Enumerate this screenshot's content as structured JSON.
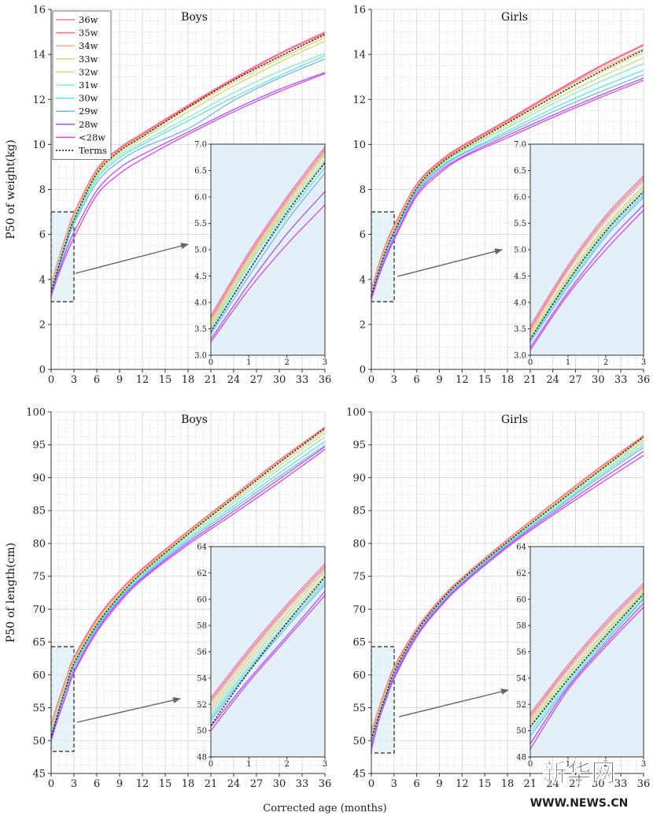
{
  "legend": {
    "entries": [
      {
        "label": "36w",
        "color": "#f472b6",
        "dash": false
      },
      {
        "label": "35w",
        "color": "#f87171",
        "dash": false
      },
      {
        "label": "34w",
        "color": "#f5b083",
        "dash": false
      },
      {
        "label": "33w",
        "color": "#e2d27e",
        "dash": false
      },
      {
        "label": "32w",
        "color": "#c5de85",
        "dash": false
      },
      {
        "label": "31w",
        "color": "#8fe6c8",
        "dash": false
      },
      {
        "label": "30w",
        "color": "#5fe3ec",
        "dash": false
      },
      {
        "label": "29w",
        "color": "#7eb3ea",
        "dash": false
      },
      {
        "label": "28w",
        "color": "#a855f7",
        "dash": false
      },
      {
        "label": "<28w",
        "color": "#d946ef",
        "dash": false
      },
      {
        "label": "Terms",
        "color": "#111111",
        "dash": true
      }
    ]
  },
  "xlabel_common": "Corrected age (months)",
  "watermark": {
    "cn": "新华网",
    "en": "WWW.NEWS.CN"
  },
  "chart_data": [
    {
      "type": "line",
      "id": "weight-boys",
      "title": "Boys",
      "ylabel": "P50 of weight(kg)",
      "xlim": [
        0,
        36
      ],
      "ylim": [
        0,
        16
      ],
      "xticks": [
        0,
        3,
        6,
        9,
        12,
        15,
        18,
        21,
        24,
        27,
        30,
        33,
        36
      ],
      "yticks": [
        0,
        2,
        4,
        6,
        8,
        10,
        12,
        14,
        16
      ],
      "x": [
        0,
        1,
        2,
        3,
        6,
        9,
        12,
        18,
        24,
        30,
        36
      ],
      "series": [
        {
          "name": "36w",
          "values": [
            3.75,
            4.95,
            6.0,
            6.95,
            8.9,
            9.85,
            10.5,
            11.75,
            12.95,
            14.05,
            15.0
          ]
        },
        {
          "name": "35w",
          "values": [
            3.7,
            4.9,
            5.95,
            6.9,
            8.85,
            9.8,
            10.45,
            11.7,
            12.9,
            14.0,
            14.95
          ]
        },
        {
          "name": "34w",
          "values": [
            3.65,
            4.85,
            5.9,
            6.85,
            8.8,
            9.75,
            10.4,
            11.65,
            12.85,
            13.9,
            14.85
          ]
        },
        {
          "name": "33w",
          "values": [
            3.6,
            4.8,
            5.85,
            6.8,
            8.75,
            9.7,
            10.35,
            11.6,
            12.75,
            13.8,
            14.75
          ]
        },
        {
          "name": "32w",
          "values": [
            3.55,
            4.75,
            5.8,
            6.7,
            8.65,
            9.6,
            10.25,
            11.45,
            12.6,
            13.65,
            14.6
          ]
        },
        {
          "name": "31w",
          "values": [
            3.5,
            4.7,
            5.75,
            6.65,
            8.55,
            9.5,
            10.1,
            11.2,
            12.3,
            13.25,
            14.05
          ]
        },
        {
          "name": "30w",
          "values": [
            3.45,
            4.6,
            5.65,
            6.55,
            8.45,
            9.4,
            10.0,
            11.05,
            12.1,
            13.05,
            13.95
          ]
        },
        {
          "name": "29w",
          "values": [
            3.4,
            4.5,
            5.55,
            6.45,
            8.3,
            9.25,
            9.85,
            10.7,
            11.95,
            12.95,
            13.8
          ]
        },
        {
          "name": "28w",
          "values": [
            3.3,
            4.35,
            5.3,
            6.1,
            7.95,
            8.95,
            9.55,
            10.55,
            11.55,
            12.45,
            13.2
          ]
        },
        {
          "name": "<28w",
          "values": [
            3.25,
            4.25,
            5.1,
            5.85,
            7.75,
            8.7,
            9.35,
            10.45,
            11.45,
            12.35,
            13.15
          ]
        },
        {
          "name": "Terms",
          "values": [
            3.45,
            4.6,
            5.7,
            6.65,
            8.7,
            9.7,
            10.35,
            11.65,
            12.85,
            13.9,
            14.9
          ]
        }
      ],
      "inset": {
        "xlim": [
          0,
          3
        ],
        "ylim": [
          3.0,
          7.0
        ],
        "xticks": [
          0,
          1,
          2,
          3
        ],
        "yticks": [
          3.0,
          3.5,
          4.0,
          4.5,
          5.0,
          5.5,
          6.0,
          6.5,
          7.0
        ]
      }
    },
    {
      "type": "line",
      "id": "weight-girls",
      "title": "Girls",
      "ylabel": "",
      "xlim": [
        0,
        36
      ],
      "ylim": [
        0,
        16
      ],
      "xticks": [
        0,
        3,
        6,
        9,
        12,
        15,
        18,
        21,
        24,
        27,
        30,
        33,
        36
      ],
      "yticks": [
        0,
        2,
        4,
        6,
        8,
        10,
        12,
        14,
        16
      ],
      "x": [
        0,
        1,
        2,
        3,
        6,
        9,
        12,
        18,
        24,
        30,
        36
      ],
      "series": [
        {
          "name": "36w",
          "values": [
            3.55,
            4.7,
            5.65,
            6.4,
            8.25,
            9.25,
            9.95,
            11.1,
            12.3,
            13.45,
            14.45
          ]
        },
        {
          "name": "35w",
          "values": [
            3.5,
            4.65,
            5.6,
            6.35,
            8.2,
            9.2,
            9.9,
            11.05,
            12.25,
            13.4,
            14.4
          ]
        },
        {
          "name": "34w",
          "values": [
            3.45,
            4.6,
            5.55,
            6.3,
            8.15,
            9.15,
            9.85,
            11.0,
            12.2,
            13.3,
            14.25
          ]
        },
        {
          "name": "33w",
          "values": [
            3.4,
            4.5,
            5.45,
            6.2,
            8.1,
            9.1,
            9.8,
            10.95,
            12.1,
            13.15,
            14.1
          ]
        },
        {
          "name": "32w",
          "values": [
            3.35,
            4.45,
            5.4,
            6.15,
            8.05,
            9.05,
            9.75,
            10.85,
            11.95,
            12.95,
            13.85
          ]
        },
        {
          "name": "31w",
          "values": [
            3.3,
            4.4,
            5.35,
            6.1,
            8.0,
            9.0,
            9.7,
            10.75,
            11.8,
            12.75,
            13.6
          ]
        },
        {
          "name": "30w",
          "values": [
            3.3,
            4.35,
            5.3,
            6.05,
            7.95,
            8.95,
            9.6,
            10.6,
            11.6,
            12.5,
            13.3
          ]
        },
        {
          "name": "29w",
          "values": [
            3.25,
            4.3,
            5.25,
            6.0,
            7.9,
            8.9,
            9.55,
            10.5,
            11.45,
            12.3,
            13.1
          ]
        },
        {
          "name": "28w",
          "values": [
            3.15,
            4.2,
            5.1,
            5.85,
            7.8,
            8.8,
            9.45,
            10.4,
            11.3,
            12.15,
            12.95
          ]
        },
        {
          "name": "<28w",
          "values": [
            3.1,
            4.15,
            5.0,
            5.75,
            7.7,
            8.7,
            9.4,
            10.3,
            11.2,
            12.05,
            12.85
          ]
        },
        {
          "name": "Terms",
          "values": [
            3.3,
            4.4,
            5.35,
            6.1,
            8.05,
            9.1,
            9.8,
            10.95,
            12.1,
            13.2,
            14.2
          ]
        }
      ],
      "inset": {
        "xlim": [
          0,
          3
        ],
        "ylim": [
          3.0,
          7.0
        ],
        "xticks": [
          0,
          1,
          2,
          3
        ],
        "yticks": [
          3.0,
          3.5,
          4.0,
          4.5,
          5.0,
          5.5,
          6.0,
          6.5,
          7.0
        ]
      }
    },
    {
      "type": "line",
      "id": "length-boys",
      "title": "Boys",
      "ylabel": "P50 of length(cm)",
      "xlim": [
        0,
        36
      ],
      "ylim": [
        45,
        100
      ],
      "xticks": [
        0,
        3,
        6,
        9,
        12,
        15,
        18,
        21,
        24,
        27,
        30,
        33,
        36
      ],
      "yticks": [
        45,
        50,
        55,
        60,
        65,
        70,
        75,
        80,
        85,
        90,
        95,
        100
      ],
      "x": [
        0,
        1,
        2,
        3,
        6,
        9,
        12,
        18,
        24,
        30,
        36
      ],
      "series": [
        {
          "name": "36w",
          "values": [
            52.5,
            56.2,
            59.6,
            62.7,
            68.6,
            72.8,
            76.2,
            81.9,
            87.3,
            92.7,
            97.7
          ]
        },
        {
          "name": "35w",
          "values": [
            52.3,
            56.0,
            59.4,
            62.5,
            68.4,
            72.6,
            76.0,
            81.8,
            87.2,
            92.6,
            97.6
          ]
        },
        {
          "name": "34w",
          "values": [
            52.1,
            55.8,
            59.2,
            62.3,
            68.2,
            72.5,
            75.9,
            81.7,
            87.1,
            92.5,
            97.5
          ]
        },
        {
          "name": "33w",
          "values": [
            51.8,
            55.5,
            58.9,
            62.1,
            68.0,
            72.3,
            75.7,
            81.5,
            86.9,
            92.2,
            97.2
          ]
        },
        {
          "name": "32w",
          "values": [
            51.5,
            55.2,
            58.6,
            61.8,
            67.8,
            72.1,
            75.5,
            81.3,
            86.6,
            91.8,
            96.8
          ]
        },
        {
          "name": "31w",
          "values": [
            51.2,
            54.9,
            58.3,
            61.5,
            67.5,
            71.9,
            75.3,
            81.0,
            86.2,
            91.3,
            96.2
          ]
        },
        {
          "name": "30w",
          "values": [
            51.0,
            54.7,
            58.1,
            61.3,
            67.3,
            71.7,
            75.1,
            80.7,
            85.7,
            90.7,
            95.5
          ]
        },
        {
          "name": "29w",
          "values": [
            50.8,
            54.5,
            57.9,
            61.1,
            67.1,
            71.5,
            74.9,
            80.4,
            85.3,
            90.2,
            94.9
          ]
        },
        {
          "name": "28w",
          "values": [
            50.3,
            53.9,
            57.2,
            60.6,
            66.8,
            71.3,
            74.7,
            80.1,
            84.9,
            89.8,
            94.7
          ]
        },
        {
          "name": "<28w",
          "values": [
            50.0,
            53.7,
            57.0,
            60.3,
            66.5,
            71.0,
            74.5,
            79.8,
            84.5,
            89.3,
            94.3
          ]
        },
        {
          "name": "Terms",
          "values": [
            50.4,
            54.5,
            58.2,
            61.7,
            67.6,
            72.0,
            75.6,
            81.4,
            86.9,
            92.3,
            97.5
          ]
        }
      ],
      "inset": {
        "xlim": [
          0,
          3
        ],
        "ylim": [
          48,
          64
        ],
        "xticks": [
          0,
          1,
          2,
          3
        ],
        "yticks": [
          48,
          50,
          52,
          54,
          56,
          58,
          60,
          62,
          64
        ]
      }
    },
    {
      "type": "line",
      "id": "length-girls",
      "title": "Girls",
      "ylabel": "",
      "xlim": [
        0,
        36
      ],
      "ylim": [
        45,
        100
      ],
      "xticks": [
        0,
        3,
        6,
        9,
        12,
        15,
        18,
        21,
        24,
        27,
        30,
        33,
        36
      ],
      "yticks": [
        45,
        50,
        55,
        60,
        65,
        70,
        75,
        80,
        85,
        90,
        95,
        100
      ],
      "x": [
        0,
        1,
        2,
        3,
        6,
        9,
        12,
        18,
        24,
        30,
        36
      ],
      "series": [
        {
          "name": "36w",
          "values": [
            51.3,
            55.0,
            58.3,
            61.2,
            67.1,
            71.4,
            74.8,
            80.6,
            86.1,
            91.4,
            96.4
          ]
        },
        {
          "name": "35w",
          "values": [
            51.1,
            54.8,
            58.1,
            61.0,
            66.9,
            71.2,
            74.7,
            80.5,
            86.0,
            91.3,
            96.3
          ]
        },
        {
          "name": "34w",
          "values": [
            50.9,
            54.6,
            57.9,
            60.8,
            66.8,
            71.1,
            74.6,
            80.4,
            85.9,
            91.2,
            96.2
          ]
        },
        {
          "name": "33w",
          "values": [
            50.7,
            54.3,
            57.6,
            60.6,
            66.6,
            71.0,
            74.5,
            80.3,
            85.8,
            91.0,
            96.0
          ]
        },
        {
          "name": "32w",
          "values": [
            50.5,
            54.1,
            57.4,
            60.5,
            66.5,
            70.9,
            74.4,
            80.2,
            85.6,
            90.8,
            95.7
          ]
        },
        {
          "name": "31w",
          "values": [
            50.2,
            53.8,
            57.2,
            60.3,
            66.4,
            70.8,
            74.3,
            80.1,
            85.4,
            90.5,
            95.4
          ]
        },
        {
          "name": "30w",
          "values": [
            49.9,
            53.6,
            57.0,
            60.1,
            66.3,
            70.7,
            74.2,
            79.9,
            85.1,
            90.2,
            95.0
          ]
        },
        {
          "name": "29w",
          "values": [
            49.6,
            53.4,
            56.8,
            60.0,
            66.2,
            70.6,
            74.1,
            79.8,
            84.9,
            89.9,
            94.6
          ]
        },
        {
          "name": "28w",
          "values": [
            49.0,
            53.3,
            56.6,
            59.7,
            66.0,
            70.4,
            73.9,
            79.6,
            84.6,
            89.4,
            94.0
          ]
        },
        {
          "name": "<28w",
          "values": [
            48.6,
            53.1,
            56.4,
            59.4,
            65.8,
            70.2,
            73.7,
            79.4,
            84.3,
            88.9,
            93.4
          ]
        },
        {
          "name": "Terms",
          "values": [
            50.3,
            53.9,
            57.2,
            60.4,
            66.6,
            71.0,
            74.5,
            80.2,
            85.6,
            90.9,
            96.2
          ]
        }
      ],
      "inset": {
        "xlim": [
          0,
          3
        ],
        "ylim": [
          48,
          64
        ],
        "xticks": [
          0,
          1,
          2,
          3
        ],
        "yticks": [
          48,
          50,
          52,
          54,
          56,
          58,
          60,
          62,
          64
        ]
      }
    }
  ]
}
